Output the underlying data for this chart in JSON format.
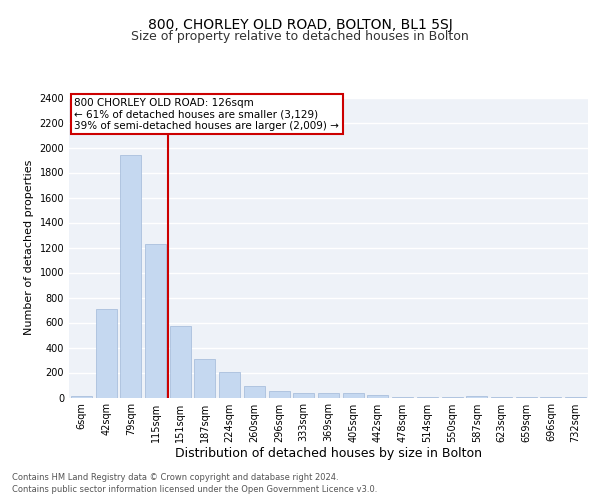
{
  "title": "800, CHORLEY OLD ROAD, BOLTON, BL1 5SJ",
  "subtitle": "Size of property relative to detached houses in Bolton",
  "xlabel": "Distribution of detached houses by size in Bolton",
  "ylabel": "Number of detached properties",
  "categories": [
    "6sqm",
    "42sqm",
    "79sqm",
    "115sqm",
    "151sqm",
    "187sqm",
    "224sqm",
    "260sqm",
    "296sqm",
    "333sqm",
    "369sqm",
    "405sqm",
    "442sqm",
    "478sqm",
    "514sqm",
    "550sqm",
    "587sqm",
    "623sqm",
    "659sqm",
    "696sqm",
    "732sqm"
  ],
  "values": [
    15,
    710,
    1940,
    1230,
    575,
    310,
    205,
    90,
    55,
    35,
    35,
    40,
    20,
    5,
    5,
    3,
    15,
    2,
    2,
    2,
    2
  ],
  "bar_color": "#c5d8f0",
  "bar_edge_color": "#a0b8d8",
  "ylim": [
    0,
    2400
  ],
  "yticks": [
    0,
    200,
    400,
    600,
    800,
    1000,
    1200,
    1400,
    1600,
    1800,
    2000,
    2200,
    2400
  ],
  "property_line_x": 3.5,
  "annotation_title": "800 CHORLEY OLD ROAD: 126sqm",
  "annotation_line1": "← 61% of detached houses are smaller (3,129)",
  "annotation_line2": "39% of semi-detached houses are larger (2,009) →",
  "footer_line1": "Contains HM Land Registry data © Crown copyright and database right 2024.",
  "footer_line2": "Contains public sector information licensed under the Open Government Licence v3.0.",
  "background_color": "#eef2f8",
  "grid_color": "#ffffff",
  "title_fontsize": 10,
  "subtitle_fontsize": 9,
  "xlabel_fontsize": 9,
  "ylabel_fontsize": 8,
  "tick_fontsize": 7,
  "annot_fontsize": 7.5,
  "footer_fontsize": 6
}
